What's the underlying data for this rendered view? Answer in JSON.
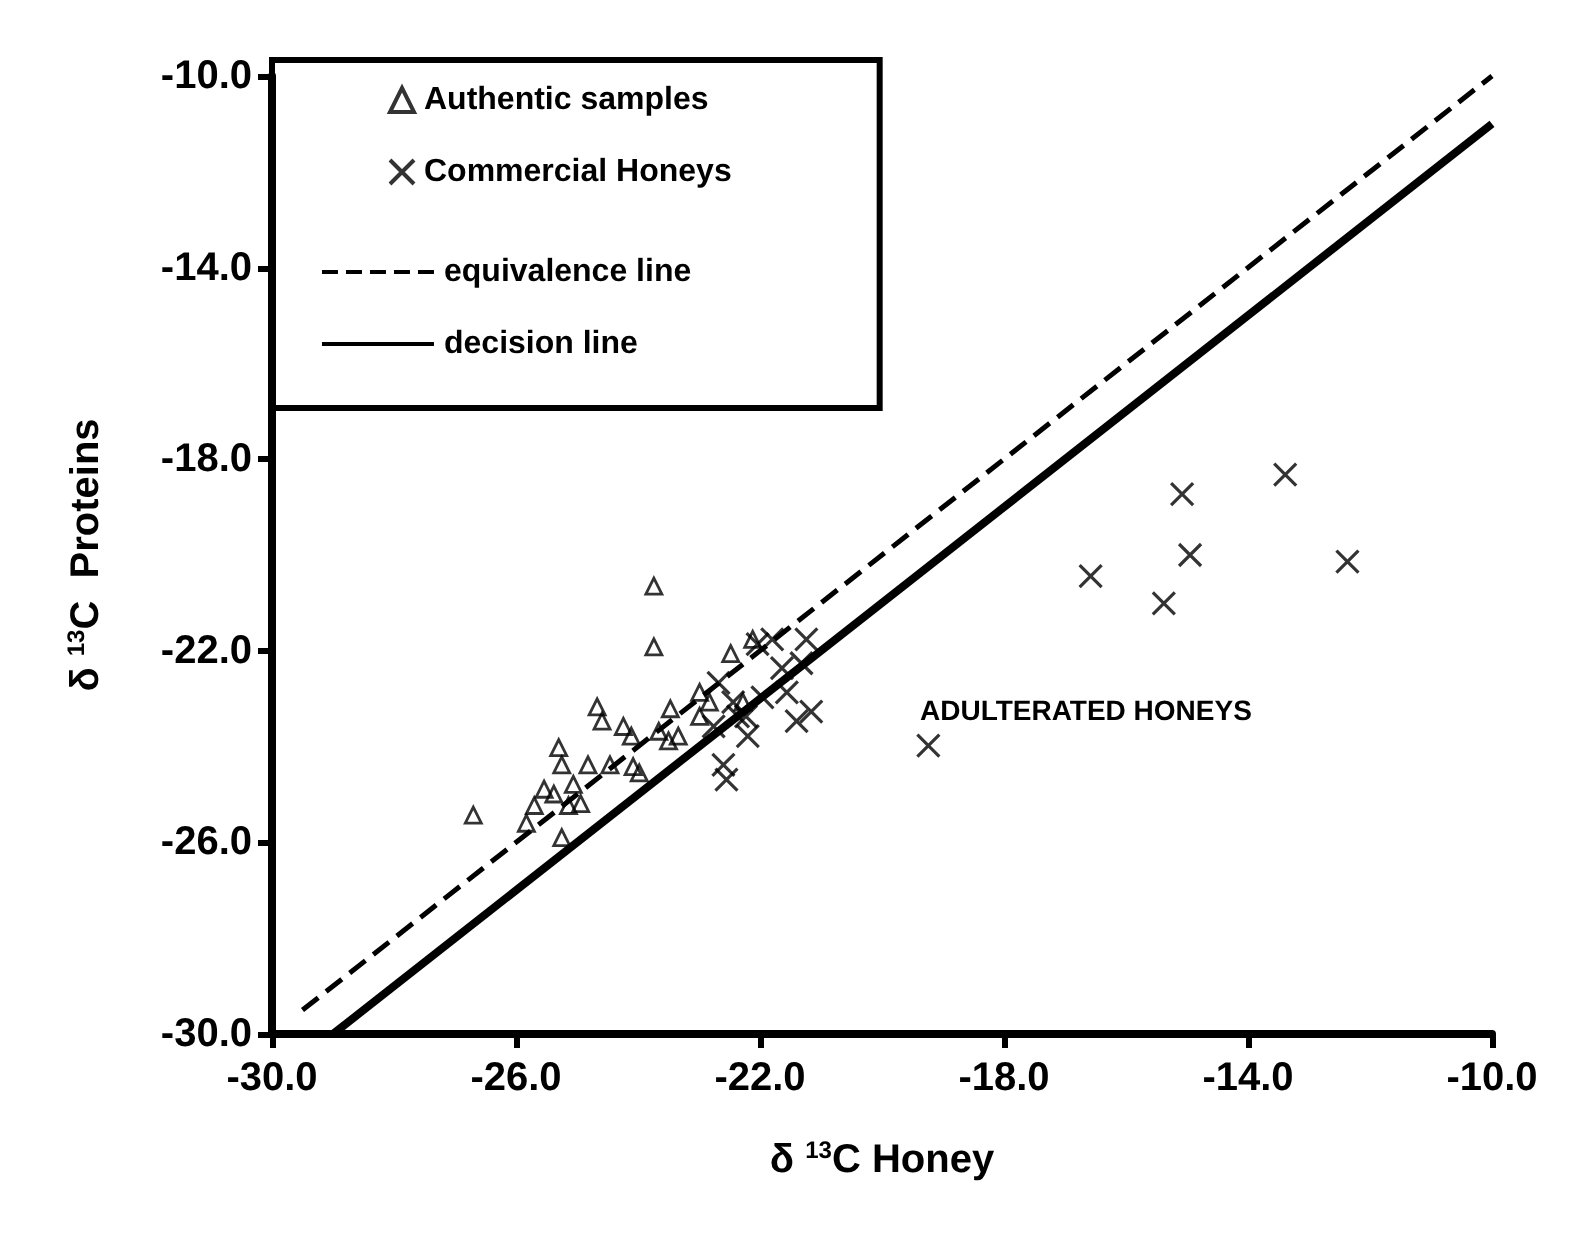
{
  "chart_data": {
    "type": "scatter",
    "xlabel": "δ $^{13}$C Honey",
    "ylabel": "δ $^{13}$C  Proteins",
    "annotations": [
      "ADULTERATED HONEYS"
    ],
    "xlim": [
      -30,
      -10
    ],
    "ylim": [
      -30,
      -10
    ],
    "xticks": [
      {
        "value": -30,
        "label": "-30.0"
      },
      {
        "value": -26,
        "label": "-26.0"
      },
      {
        "value": -22,
        "label": "-22.0"
      },
      {
        "value": -18,
        "label": "-18.0"
      },
      {
        "value": -14,
        "label": "-14.0"
      },
      {
        "value": -10,
        "label": "-10.0"
      }
    ],
    "yticks": [
      {
        "value": -30,
        "label": "-30.0"
      },
      {
        "value": -26,
        "label": "-26.0"
      },
      {
        "value": -22,
        "label": "-22.0"
      },
      {
        "value": -18,
        "label": "-18.0"
      },
      {
        "value": -14,
        "label": "-14.0"
      },
      {
        "value": -10,
        "label": "-10.0"
      }
    ],
    "grid": false,
    "legend": "top left",
    "series": [
      {
        "name": "Authentic samples",
        "type": "scatter",
        "marker": "triangle",
        "color": "#000000",
        "x": [
          -26.7,
          -23.74,
          -23.74,
          -25.83,
          -25.7,
          -25.54,
          -25.3,
          -25.25,
          -25.25,
          -25.06,
          -24.94,
          -24.82,
          -24.67,
          -24.59,
          -24.46,
          -24.24,
          -24.11,
          -24.08,
          -23.98,
          -23.66,
          -23.47,
          -23.5,
          -23.34,
          -22.99,
          -22.83,
          -22.48,
          -22.28,
          -22.12,
          -22.99,
          -25.38,
          -25.14
        ],
        "values": [
          -25.43,
          -20.65,
          -21.92,
          -25.6,
          -25.23,
          -24.89,
          -24.02,
          -24.38,
          -25.9,
          -24.79,
          -25.19,
          -24.38,
          -23.17,
          -23.47,
          -24.38,
          -23.58,
          -23.78,
          -24.42,
          -24.55,
          -23.68,
          -23.21,
          -23.88,
          -23.78,
          -22.87,
          -23.07,
          -22.06,
          -23.07,
          -21.76,
          -23.37,
          -24.99,
          -25.23
        ]
      },
      {
        "name": "Commercial Honeys",
        "type": "scatter",
        "marker": "cross",
        "color": "#000000",
        "x": [
          -16.58,
          -15.38,
          -15.08,
          -14.95,
          -13.39,
          -12.37,
          -19.24,
          -22.68,
          -22.6,
          -22.55,
          -22.36,
          -22.2,
          -22.04,
          -21.96,
          -21.8,
          -21.64,
          -21.56,
          -21.4,
          -21.24,
          -21.16,
          -21.32,
          -22.44,
          -22.23,
          -22.76
        ],
        "values": [
          -20.44,
          -21.01,
          -18.73,
          -20.0,
          -18.32,
          -20.14,
          -23.98,
          -22.67,
          -24.38,
          -24.69,
          -23.37,
          -23.78,
          -21.86,
          -22.97,
          -21.76,
          -22.36,
          -22.87,
          -23.47,
          -21.76,
          -23.27,
          -22.26,
          -23.07,
          -23.37,
          -23.58
        ]
      },
      {
        "name": "equivalence line",
        "type": "line",
        "line_style": "dashed",
        "marker": "none",
        "color": "#000000",
        "x": [
          -29.5,
          -10
        ],
        "values": [
          -29.5,
          -10
        ]
      },
      {
        "name": "decision line",
        "type": "line",
        "line_style": "solid",
        "marker": "none",
        "color": "#000000",
        "x": [
          -29,
          -10
        ],
        "values": [
          -30,
          -11
        ]
      }
    ]
  }
}
